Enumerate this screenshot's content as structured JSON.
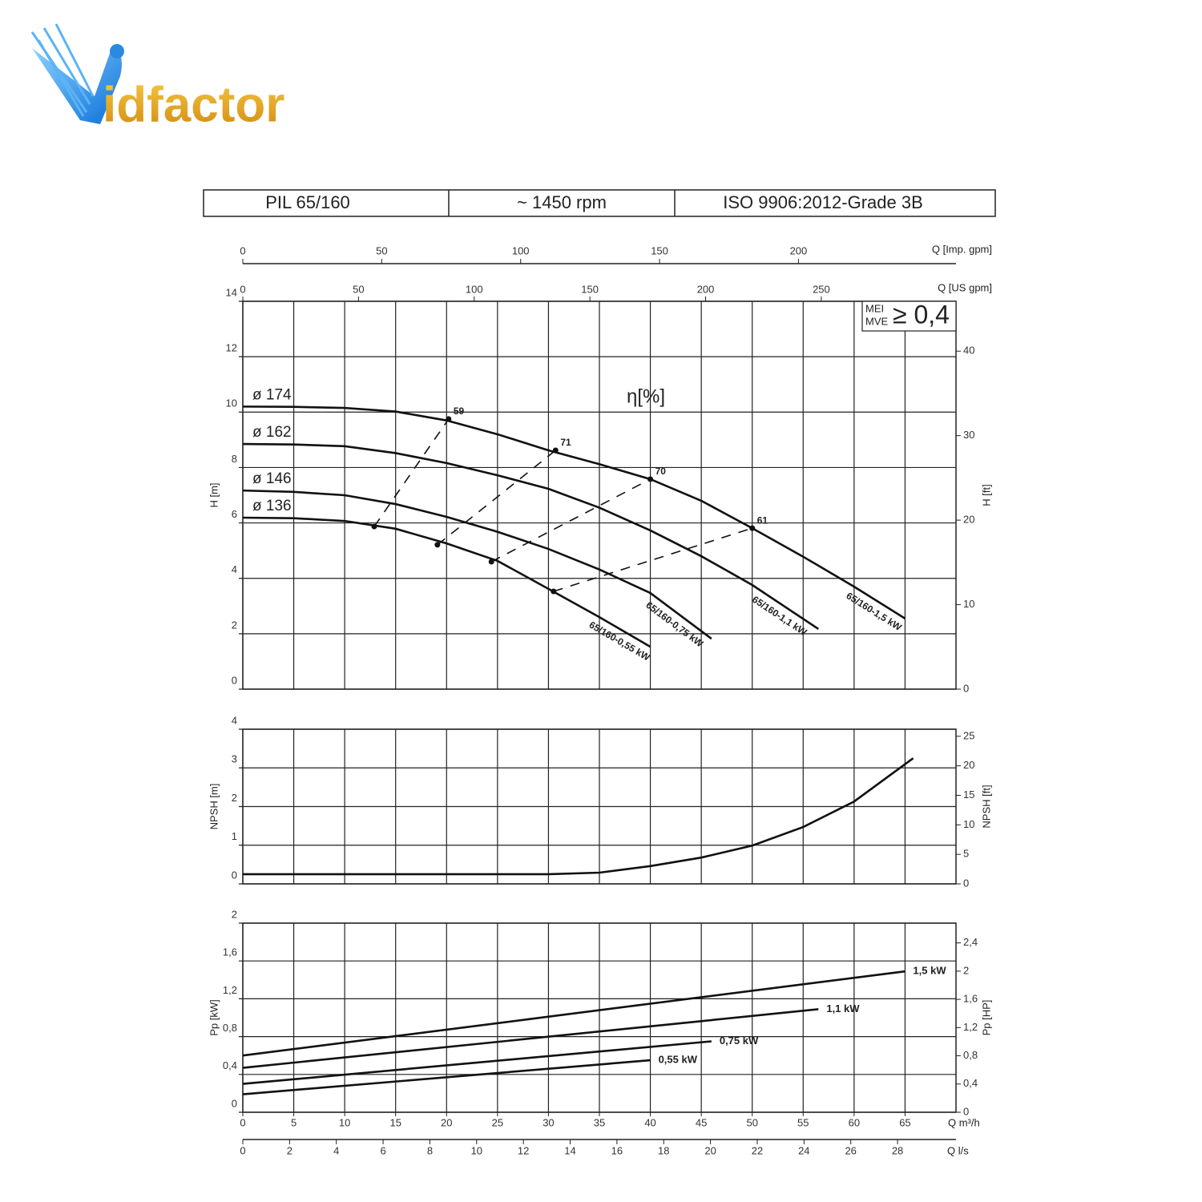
{
  "logo": {
    "text": "idfactor"
  },
  "header": {
    "cells": [
      "PIL 65/160",
      "~ 1450 rpm",
      "ISO 9906:2012-Grade 3B"
    ]
  },
  "chart_data": [
    {
      "type": "line",
      "xlim": [
        0,
        70
      ],
      "xticks": [
        0,
        5,
        10,
        15,
        20,
        25,
        30,
        35,
        40,
        45,
        50,
        55,
        60,
        65
      ],
      "ylabel": "H [m]",
      "ylim": [
        0,
        14
      ],
      "yticks": [
        0,
        2,
        4,
        6,
        8,
        10,
        12,
        14
      ],
      "y2label": "H [ft]",
      "y2lim": [
        0,
        45.9
      ],
      "y2ticks": [
        0,
        10,
        20,
        30,
        40
      ],
      "top_axes": [
        {
          "label": "Q [Imp. gpm]",
          "xlim": [
            0,
            256.7
          ],
          "xticks": [
            0,
            50,
            100,
            150,
            200
          ]
        },
        {
          "label": "Q [US gpm]",
          "xlim": [
            0,
            308.2
          ],
          "xticks": [
            0,
            50,
            100,
            150,
            200,
            250
          ]
        }
      ],
      "annotation": "η[%]",
      "mei_box": {
        "line1": "MEI",
        "line2": "MVE",
        "value": "≥ 0,4"
      },
      "series": [
        {
          "name": "ø 174",
          "label": "65/160-1,5 kW",
          "color": "#111111",
          "x": [
            0,
            5,
            10,
            15,
            20,
            25,
            30,
            35,
            40,
            45,
            50,
            55,
            60,
            65
          ],
          "values": [
            10.2,
            10.19,
            10.15,
            10.02,
            9.7,
            9.2,
            8.62,
            8.12,
            7.58,
            6.8,
            5.81,
            4.78,
            3.7,
            2.55
          ]
        },
        {
          "name": "ø 162",
          "label": "65/160-1,1 kW",
          "color": "#111111",
          "x": [
            0,
            5,
            10,
            15,
            20,
            25,
            30,
            35,
            40,
            45,
            50,
            56.5
          ],
          "values": [
            8.85,
            8.83,
            8.77,
            8.52,
            8.16,
            7.72,
            7.23,
            6.55,
            5.73,
            4.8,
            3.76,
            2.17
          ]
        },
        {
          "name": "ø 146",
          "label": "65/160-0,75 kW",
          "color": "#111111",
          "x": [
            0,
            5,
            10,
            15,
            20,
            25,
            30,
            35,
            40,
            46
          ],
          "values": [
            7.17,
            7.12,
            7.0,
            6.68,
            6.22,
            5.68,
            5.06,
            4.32,
            3.47,
            1.82
          ]
        },
        {
          "name": "ø 136",
          "label": "65/160-0,55 kW",
          "color": "#111111",
          "x": [
            0,
            5,
            10,
            15,
            20,
            25,
            30,
            35,
            40
          ],
          "values": [
            6.19,
            6.17,
            6.07,
            5.79,
            5.26,
            4.63,
            3.62,
            2.6,
            1.53
          ]
        }
      ],
      "efficiency_lines": [
        {
          "name": "59",
          "x": [
            12.9,
            20.2
          ],
          "values": [
            5.87,
            9.75
          ]
        },
        {
          "name": "71",
          "x": [
            19.1,
            30.7
          ],
          "values": [
            5.21,
            8.62
          ]
        },
        {
          "name": "70",
          "x": [
            24.4,
            40
          ],
          "values": [
            4.6,
            7.58
          ]
        },
        {
          "name": "61",
          "x": [
            30.5,
            50
          ],
          "values": [
            3.53,
            5.81
          ]
        }
      ]
    },
    {
      "type": "line",
      "xlim": [
        0,
        70
      ],
      "xticks": [
        0,
        5,
        10,
        15,
        20,
        25,
        30,
        35,
        40,
        45,
        50,
        55,
        60,
        65
      ],
      "ylabel": "NPSH [m]",
      "ylim": [
        0,
        4
      ],
      "yticks": [
        0,
        1,
        2,
        3,
        4
      ],
      "y2label": "NPSH [ft]",
      "y2lim": [
        0,
        26.2
      ],
      "y2ticks": [
        0,
        5,
        10,
        15,
        20,
        25
      ],
      "series": [
        {
          "color": "#111111",
          "x": [
            0,
            10,
            20,
            30,
            35,
            40,
            45,
            50,
            55,
            60,
            65.8
          ],
          "values": [
            0.25,
            0.25,
            0.25,
            0.25,
            0.29,
            0.46,
            0.68,
            0.99,
            1.47,
            2.13,
            3.25
          ]
        }
      ]
    },
    {
      "type": "line",
      "xlabel": "Q m³/h",
      "xlim": [
        0,
        70
      ],
      "xticks": [
        0,
        5,
        10,
        15,
        20,
        25,
        30,
        35,
        40,
        45,
        50,
        55,
        60,
        65
      ],
      "ylabel": "Pp [kW]",
      "ylim": [
        0,
        2
      ],
      "yticks": [
        0,
        {
          "value": 0.4,
          "label": "0,4"
        },
        {
          "value": 0.8,
          "label": "0,8"
        },
        {
          "value": 1.2,
          "label": "1,2"
        },
        {
          "value": 1.6,
          "label": "1,6"
        },
        2
      ],
      "y2label": "Pp [HP]",
      "y2lim": [
        0,
        2.68
      ],
      "y2ticks": [
        0,
        {
          "value": 0.4,
          "label": "0,4"
        },
        {
          "value": 0.8,
          "label": "0,8"
        },
        {
          "value": 1.2,
          "label": "1,2"
        },
        {
          "value": 1.6,
          "label": "1,6"
        },
        2,
        {
          "value": 2.4,
          "label": "2,4"
        }
      ],
      "bottom_axes": [
        {
          "label": "Q l/s",
          "xlim": [
            0,
            30.5
          ],
          "xticks": [
            0,
            2,
            4,
            6,
            8,
            10,
            12,
            14,
            16,
            18,
            20,
            22,
            24,
            26,
            28
          ]
        }
      ],
      "series": [
        {
          "name": "1,5 kW",
          "color": "#111111",
          "x": [
            0,
            65
          ],
          "values": [
            0.6,
            1.49
          ]
        },
        {
          "name": "1,1 kW",
          "color": "#111111",
          "x": [
            0,
            56.5
          ],
          "values": [
            0.47,
            1.09
          ]
        },
        {
          "name": "0,75 kW",
          "color": "#111111",
          "x": [
            0,
            46
          ],
          "values": [
            0.3,
            0.75
          ]
        },
        {
          "name": "0,55 kW",
          "color": "#111111",
          "x": [
            0,
            40
          ],
          "values": [
            0.19,
            0.55
          ]
        }
      ]
    }
  ]
}
